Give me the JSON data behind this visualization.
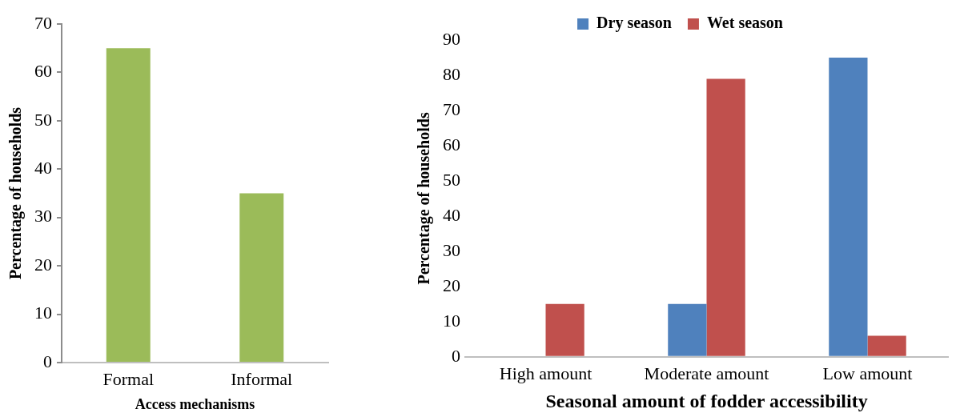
{
  "chart_data": [
    {
      "type": "bar",
      "xlabel": "Access mechanisms",
      "ylabel": "Percentage of households",
      "categories": [
        "Formal",
        "Informal"
      ],
      "series": [
        {
          "color": "#9bbb59",
          "values": [
            65,
            35
          ]
        }
      ],
      "ylim": [
        0,
        70
      ],
      "yticks": [
        0,
        10,
        20,
        30,
        40,
        50,
        60,
        70
      ],
      "grid": false,
      "legend": false
    },
    {
      "type": "bar",
      "xlabel": "Seasonal amount of fodder accessibility",
      "ylabel": "Percentage of households",
      "categories": [
        "High amount",
        "Moderate amount",
        "Low amount"
      ],
      "series": [
        {
          "name": "Dry season",
          "color": "#4f81bd",
          "values": [
            0,
            15,
            85
          ]
        },
        {
          "name": "Wet season",
          "color": "#c0504d",
          "values": [
            15,
            79,
            6
          ]
        }
      ],
      "ylim": [
        0,
        90
      ],
      "yticks": [
        0,
        10,
        20,
        30,
        40,
        50,
        60,
        70,
        80,
        90
      ],
      "grid": false,
      "legend": "top"
    }
  ]
}
